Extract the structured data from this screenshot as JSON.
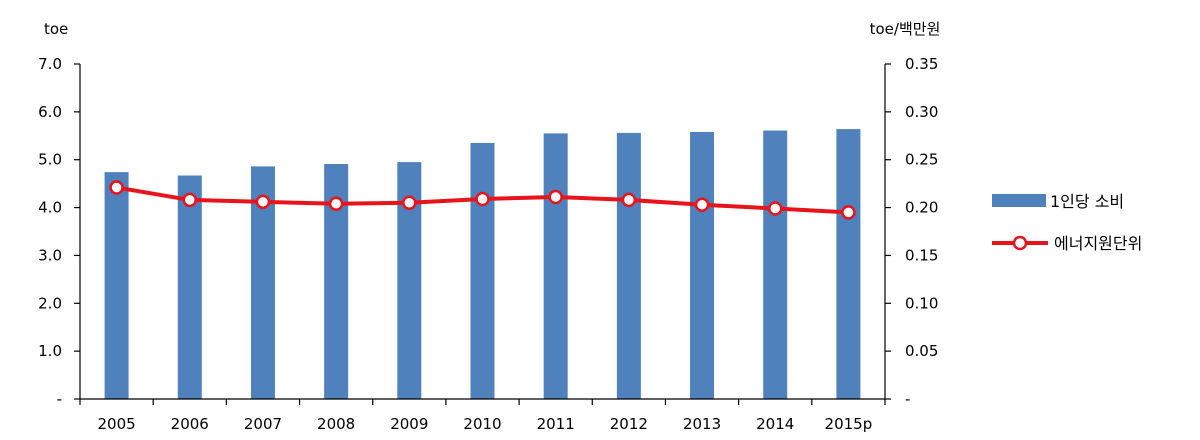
{
  "chart_data": {
    "type": "bar+line",
    "categories": [
      "2005",
      "2006",
      "2007",
      "2008",
      "2009",
      "2010",
      "2011",
      "2012",
      "2013",
      "2014",
      "2015p"
    ],
    "series": [
      {
        "name": "1인당 소비",
        "type": "bar",
        "axis": "left",
        "color": "#4F81BD",
        "values": [
          4.74,
          4.67,
          4.86,
          4.91,
          4.95,
          5.35,
          5.55,
          5.56,
          5.58,
          5.61,
          5.64
        ]
      },
      {
        "name": "에너지원단위",
        "type": "line",
        "axis": "right",
        "color": "#E8141B",
        "marker": "open-circle",
        "values": [
          0.221,
          0.208,
          0.206,
          0.204,
          0.205,
          0.209,
          0.211,
          0.208,
          0.203,
          0.199,
          0.195
        ]
      }
    ],
    "left_axis": {
      "unit": "toe",
      "min": 0,
      "max": 7.0,
      "ticks": [
        "-",
        "1.0",
        "2.0",
        "3.0",
        "4.0",
        "5.0",
        "6.0",
        "7.0"
      ]
    },
    "right_axis": {
      "unit": "toe/백만원",
      "min": 0,
      "max": 0.35,
      "ticks": [
        "-",
        "0.05",
        "0.10",
        "0.15",
        "0.20",
        "0.25",
        "0.30",
        "0.35"
      ]
    },
    "legend_position": "right",
    "grid": false
  }
}
